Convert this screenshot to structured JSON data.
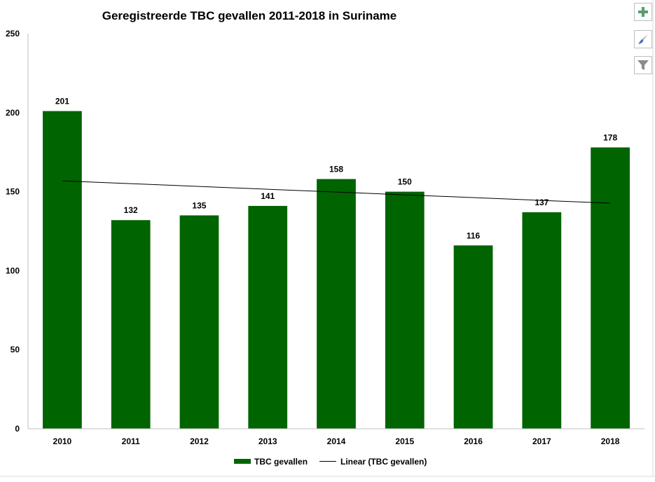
{
  "chart_data": {
    "type": "bar",
    "title": "Geregistreerde TBC gevallen 2011-2018 in Suriname",
    "categories": [
      "2010",
      "2011",
      "2012",
      "2013",
      "2014",
      "2015",
      "2016",
      "2017",
      "2018"
    ],
    "series": [
      {
        "name": "TBC gevallen",
        "values": [
          201,
          132,
          135,
          141,
          158,
          150,
          116,
          137,
          178
        ],
        "color": "#006400"
      }
    ],
    "trendline": {
      "name": "Linear (TBC gevallen)",
      "type": "linear",
      "color": "#000000"
    },
    "y_ticks": [
      "0",
      "50",
      "100",
      "150",
      "200",
      "250"
    ],
    "ylim": [
      0,
      250
    ],
    "xlabel": "",
    "ylabel": "",
    "grid": false,
    "data_labels": true,
    "legend_position": "bottom"
  },
  "toolbar": {
    "buttons": [
      {
        "name": "chart-elements-button",
        "icon": "plus-icon"
      },
      {
        "name": "chart-styles-button",
        "icon": "paintbrush-icon"
      },
      {
        "name": "chart-filters-button",
        "icon": "funnel-icon"
      }
    ]
  }
}
